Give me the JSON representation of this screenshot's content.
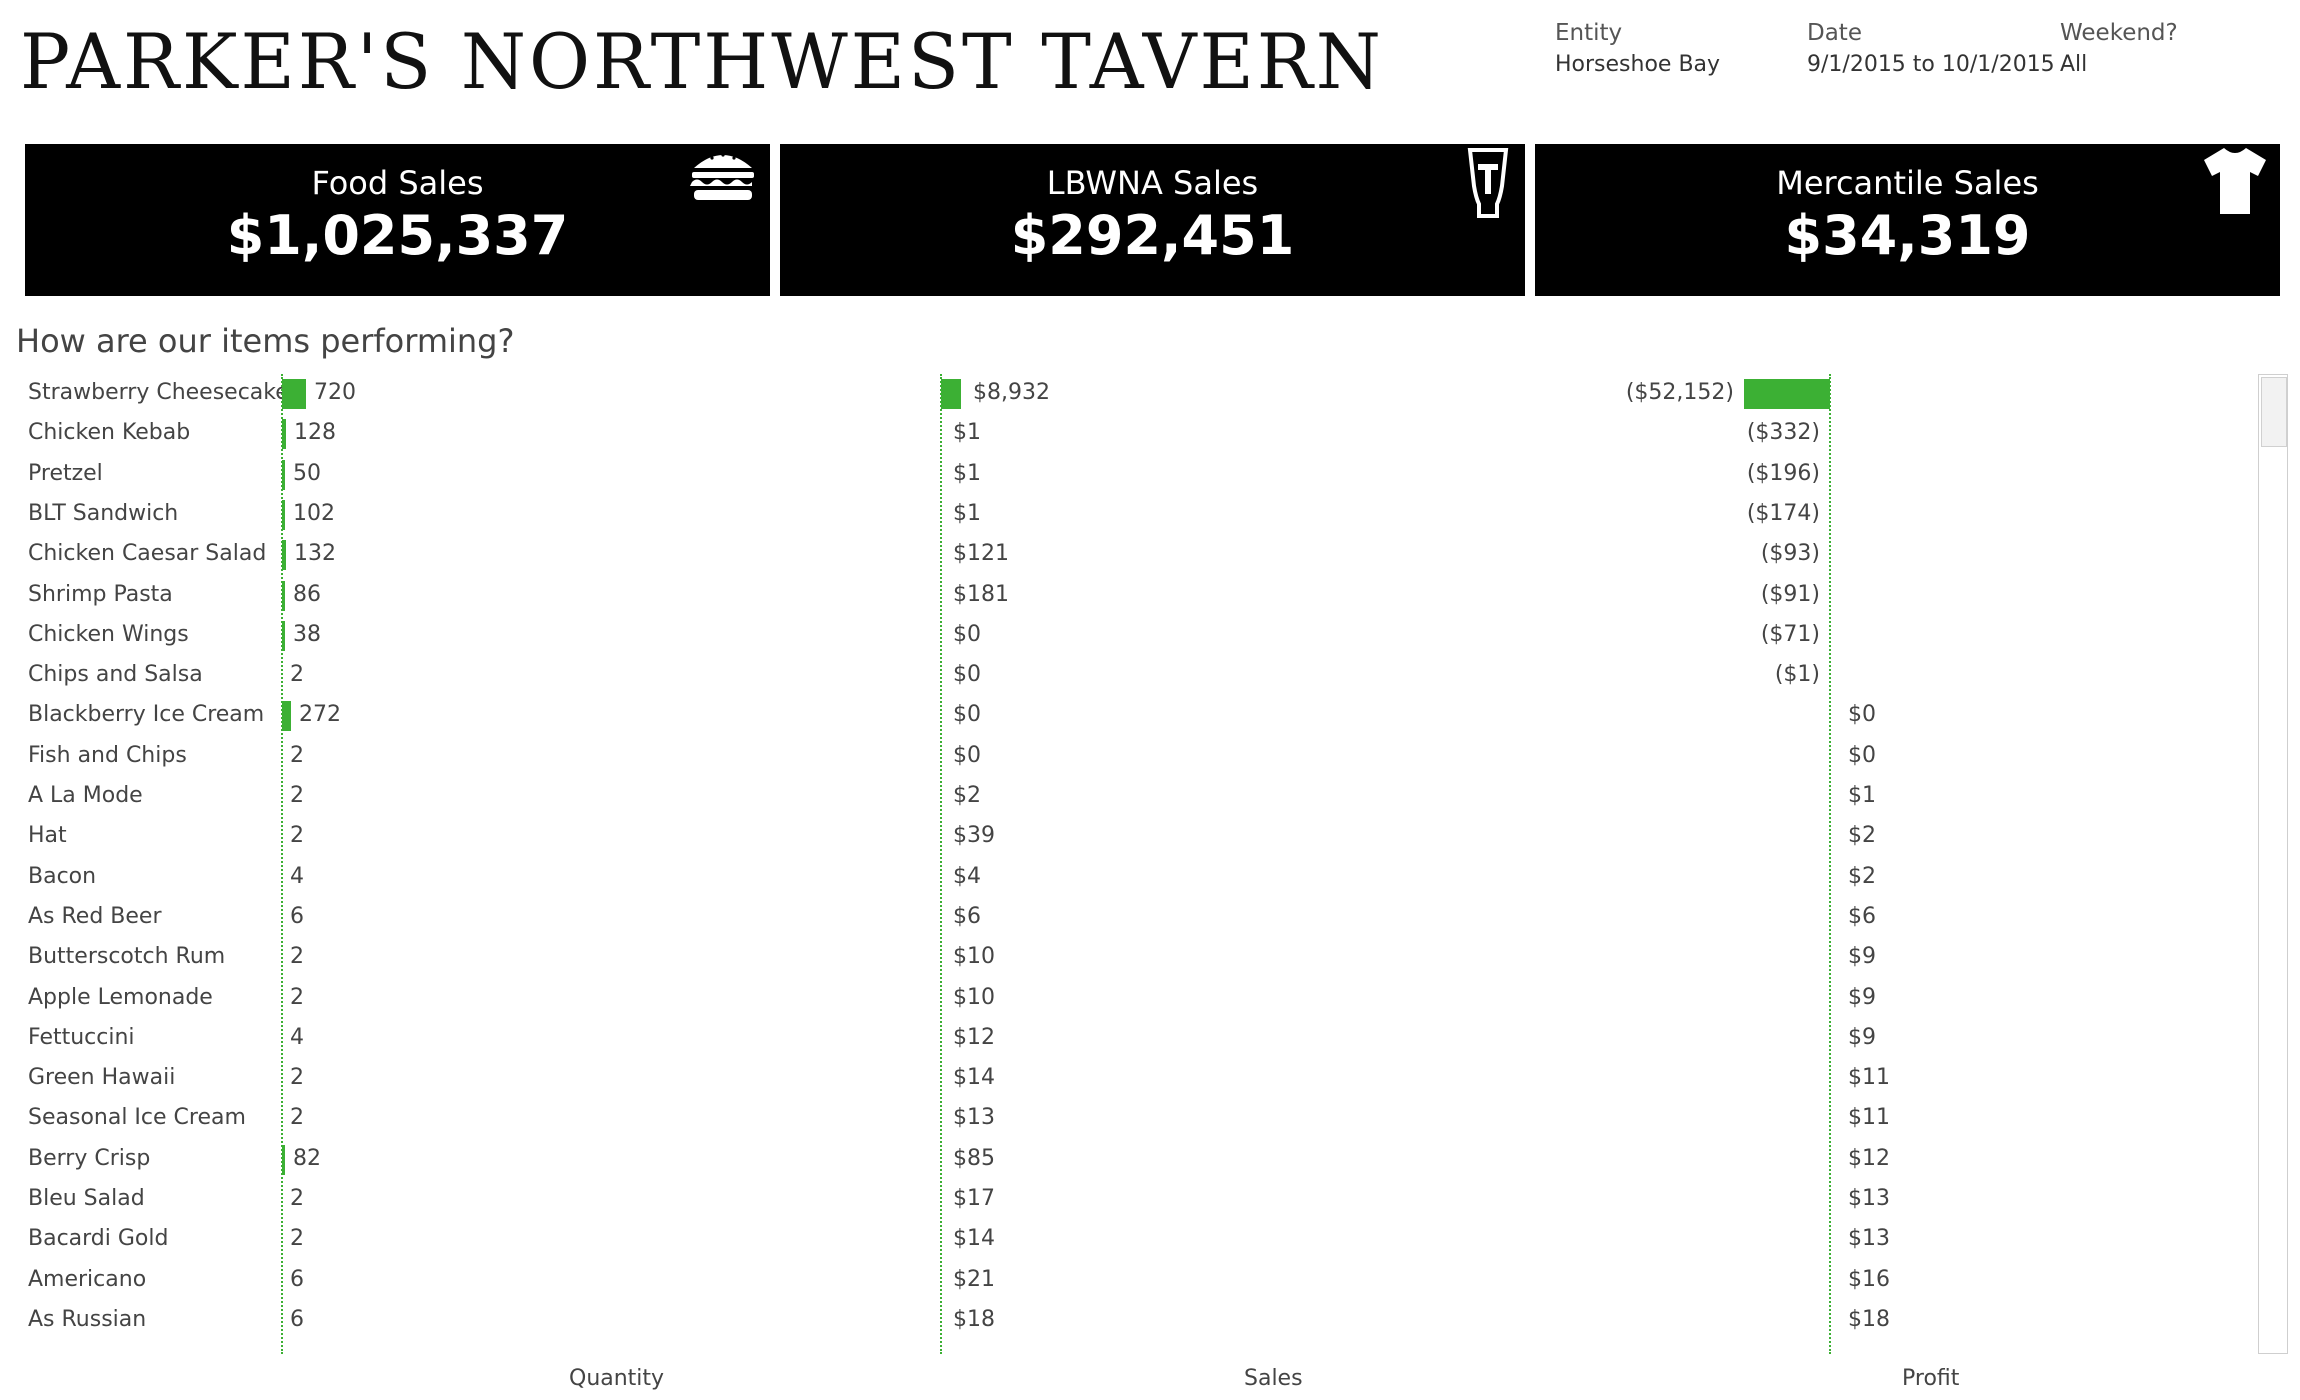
{
  "header": {
    "title": "PARKER'S NORTHWEST TAVERN",
    "filters": [
      {
        "label": "Entity",
        "value": "Horseshoe Bay"
      },
      {
        "label": "Date",
        "value": "9/1/2015 to 10/1/2015"
      },
      {
        "label": "Weekend?",
        "value": "All"
      }
    ]
  },
  "kpis": [
    {
      "label": "Food Sales",
      "value": "$1,025,337",
      "icon": "burger-icon"
    },
    {
      "label": "LBWNA Sales",
      "value": "$292,451",
      "icon": "beer-glass-icon"
    },
    {
      "label": "Mercantile Sales",
      "value": "$34,319",
      "icon": "tshirt-icon"
    }
  ],
  "section_title": "How are our items performing?",
  "chart_data": {
    "type": "bar",
    "accent_color": "#3cb034",
    "columns": [
      "Quantity",
      "Sales",
      "Profit"
    ],
    "rows": [
      {
        "item": "Strawberry Cheesecake",
        "quantity": 720,
        "quantity_label": "720",
        "sales": 8932,
        "sales_label": "$8,932",
        "profit": -52152,
        "profit_label": "($52,152)"
      },
      {
        "item": "Chicken Kebab",
        "quantity": 128,
        "quantity_label": "128",
        "sales": 1,
        "sales_label": "$1",
        "profit": -332,
        "profit_label": "($332)"
      },
      {
        "item": "Pretzel",
        "quantity": 50,
        "quantity_label": "50",
        "sales": 1,
        "sales_label": "$1",
        "profit": -196,
        "profit_label": "($196)"
      },
      {
        "item": "BLT Sandwich",
        "quantity": 102,
        "quantity_label": "102",
        "sales": 1,
        "sales_label": "$1",
        "profit": -174,
        "profit_label": "($174)"
      },
      {
        "item": "Chicken Caesar Salad",
        "quantity": 132,
        "quantity_label": "132",
        "sales": 121,
        "sales_label": "$121",
        "profit": -93,
        "profit_label": "($93)"
      },
      {
        "item": "Shrimp Pasta",
        "quantity": 86,
        "quantity_label": "86",
        "sales": 181,
        "sales_label": "$181",
        "profit": -91,
        "profit_label": "($91)"
      },
      {
        "item": "Chicken Wings",
        "quantity": 38,
        "quantity_label": "38",
        "sales": 0,
        "sales_label": "$0",
        "profit": -71,
        "profit_label": "($71)"
      },
      {
        "item": "Chips and Salsa",
        "quantity": 2,
        "quantity_label": "2",
        "sales": 0,
        "sales_label": "$0",
        "profit": -1,
        "profit_label": "($1)"
      },
      {
        "item": "Blackberry Ice Cream",
        "quantity": 272,
        "quantity_label": "272",
        "sales": 0,
        "sales_label": "$0",
        "profit": 0,
        "profit_label": "$0"
      },
      {
        "item": "Fish and Chips",
        "quantity": 2,
        "quantity_label": "2",
        "sales": 0,
        "sales_label": "$0",
        "profit": 0,
        "profit_label": "$0"
      },
      {
        "item": "A La Mode",
        "quantity": 2,
        "quantity_label": "2",
        "sales": 2,
        "sales_label": "$2",
        "profit": 1,
        "profit_label": "$1"
      },
      {
        "item": "Hat",
        "quantity": 2,
        "quantity_label": "2",
        "sales": 39,
        "sales_label": "$39",
        "profit": 2,
        "profit_label": "$2"
      },
      {
        "item": "Bacon",
        "quantity": 4,
        "quantity_label": "4",
        "sales": 4,
        "sales_label": "$4",
        "profit": 2,
        "profit_label": "$2"
      },
      {
        "item": "As Red Beer",
        "quantity": 6,
        "quantity_label": "6",
        "sales": 6,
        "sales_label": "$6",
        "profit": 6,
        "profit_label": "$6"
      },
      {
        "item": "Butterscotch Rum",
        "quantity": 2,
        "quantity_label": "2",
        "sales": 10,
        "sales_label": "$10",
        "profit": 9,
        "profit_label": "$9"
      },
      {
        "item": "Apple Lemonade",
        "quantity": 2,
        "quantity_label": "2",
        "sales": 10,
        "sales_label": "$10",
        "profit": 9,
        "profit_label": "$9"
      },
      {
        "item": "Fettuccini",
        "quantity": 4,
        "quantity_label": "4",
        "sales": 12,
        "sales_label": "$12",
        "profit": 9,
        "profit_label": "$9"
      },
      {
        "item": "Green Hawaii",
        "quantity": 2,
        "quantity_label": "2",
        "sales": 14,
        "sales_label": "$14",
        "profit": 11,
        "profit_label": "$11"
      },
      {
        "item": "Seasonal Ice Cream",
        "quantity": 2,
        "quantity_label": "2",
        "sales": 13,
        "sales_label": "$13",
        "profit": 11,
        "profit_label": "$11"
      },
      {
        "item": "Berry Crisp",
        "quantity": 82,
        "quantity_label": "82",
        "sales": 85,
        "sales_label": "$85",
        "profit": 12,
        "profit_label": "$12"
      },
      {
        "item": "Bleu Salad",
        "quantity": 2,
        "quantity_label": "2",
        "sales": 17,
        "sales_label": "$17",
        "profit": 13,
        "profit_label": "$13"
      },
      {
        "item": "Bacardi Gold",
        "quantity": 2,
        "quantity_label": "2",
        "sales": 14,
        "sales_label": "$14",
        "profit": 13,
        "profit_label": "$13"
      },
      {
        "item": "Americano",
        "quantity": 6,
        "quantity_label": "6",
        "sales": 21,
        "sales_label": "$21",
        "profit": 16,
        "profit_label": "$16"
      },
      {
        "item": "As Russian",
        "quantity": 6,
        "quantity_label": "6",
        "sales": 18,
        "sales_label": "$18",
        "profit": 18,
        "profit_label": "$18"
      }
    ]
  }
}
